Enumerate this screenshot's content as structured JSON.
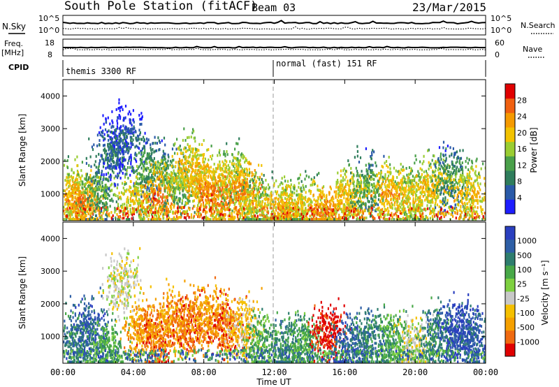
{
  "header": {
    "station": "South Pole Station (fitACF)",
    "beam": "Beam 03",
    "date": "23/Mar/2015"
  },
  "status_panels": {
    "nsky": {
      "label": "N.Sky",
      "ticks": [
        "10^5",
        "10^0"
      ],
      "right_label": "N.Search",
      "right_ticks": [
        "10^5",
        "10^0"
      ]
    },
    "freq": {
      "label_line1": "Freq.",
      "label_line2": "[MHz]",
      "ticks": [
        "18",
        "8"
      ],
      "right_label": "Nave",
      "right_ticks": [
        "60",
        "0"
      ]
    },
    "cpid": {
      "label": "CPID",
      "segments": [
        "themis 3300 RF",
        "normal (fast) 151 RF"
      ]
    }
  },
  "colors": {
    "power_scale": [
      "#1e1eff",
      "#2a5aa8",
      "#2f7d5c",
      "#4aa04a",
      "#9acd32",
      "#f2c200",
      "#f59a00",
      "#f06010",
      "#e00000"
    ],
    "velocity_scale": [
      "#2a3fbf",
      "#2e5fa6",
      "#2e7d6e",
      "#48a848",
      "#7ed040",
      "#c8c8c8",
      "#f5c000",
      "#f5a000",
      "#f06a10",
      "#e00000"
    ]
  },
  "chart_data": [
    {
      "type": "heatmap",
      "name": "power-panel",
      "ylabel": "Slant Range [km]",
      "y_ticks": [
        "4000",
        "3000",
        "2000",
        "1000"
      ],
      "ylim": [
        180,
        4500
      ],
      "xlim": [
        "00:00",
        "24:00"
      ],
      "colorbar": {
        "label": "Power [dB]",
        "ticks": [
          "28",
          "24",
          "20",
          "16",
          "12",
          "8",
          "4"
        ],
        "range": [
          0,
          32
        ]
      },
      "blobs": [
        {
          "t": 0.5,
          "r": 1000,
          "v": 22
        },
        {
          "t": 1.2,
          "r": 700,
          "v": 26
        },
        {
          "t": 2.0,
          "r": 1100,
          "v": 14
        },
        {
          "t": 2.8,
          "r": 2200,
          "v": 8
        },
        {
          "t": 3.5,
          "r": 2700,
          "v": 6
        },
        {
          "t": 4.2,
          "r": 900,
          "v": 20
        },
        {
          "t": 5.0,
          "r": 1800,
          "v": 12
        },
        {
          "t": 5.6,
          "r": 900,
          "v": 27
        },
        {
          "t": 6.5,
          "r": 1300,
          "v": 16
        },
        {
          "t": 7.3,
          "r": 1800,
          "v": 22
        },
        {
          "t": 8.0,
          "r": 1200,
          "v": 24
        },
        {
          "t": 8.8,
          "r": 900,
          "v": 28
        },
        {
          "t": 9.6,
          "r": 1500,
          "v": 20
        },
        {
          "t": 10.3,
          "r": 1100,
          "v": 26
        },
        {
          "t": 11.0,
          "r": 700,
          "v": 18
        },
        {
          "t": 12.5,
          "r": 500,
          "v": 24
        },
        {
          "t": 13.5,
          "r": 600,
          "v": 20
        },
        {
          "t": 14.8,
          "r": 450,
          "v": 26
        },
        {
          "t": 16.2,
          "r": 900,
          "v": 22
        },
        {
          "t": 17.3,
          "r": 1200,
          "v": 14
        },
        {
          "t": 18.6,
          "r": 1000,
          "v": 24
        },
        {
          "t": 19.8,
          "r": 900,
          "v": 20
        },
        {
          "t": 21.0,
          "r": 1200,
          "v": 22
        },
        {
          "t": 22.0,
          "r": 1500,
          "v": 12
        },
        {
          "t": 23.0,
          "r": 1000,
          "v": 22
        }
      ]
    },
    {
      "type": "heatmap",
      "name": "velocity-panel",
      "ylabel": "Slant Range [km]",
      "y_ticks": [
        "4000",
        "3000",
        "2000",
        "1000"
      ],
      "ylim": [
        180,
        4500
      ],
      "xlim": [
        "00:00",
        "24:00"
      ],
      "x_ticks": [
        "00:00",
        "04:00",
        "08:00",
        "12:00",
        "16:00",
        "20:00",
        "00:00"
      ],
      "xlabel": "Time UT",
      "colorbar": {
        "label": "Velocity [m s⁻¹]",
        "ticks": [
          "1000",
          "500",
          "100",
          "25",
          "-25",
          "-100",
          "-500",
          "-1000"
        ]
      },
      "blobs": [
        {
          "t": 0.6,
          "r": 900,
          "v": 2
        },
        {
          "t": 1.5,
          "r": 1200,
          "v": 1
        },
        {
          "t": 2.5,
          "r": 600,
          "v": 3
        },
        {
          "t": 3.3,
          "r": 2600,
          "v": 5
        },
        {
          "t": 4.5,
          "r": 1200,
          "v": 7
        },
        {
          "t": 5.4,
          "r": 900,
          "v": 8
        },
        {
          "t": 6.2,
          "r": 1500,
          "v": 7
        },
        {
          "t": 7.2,
          "r": 1300,
          "v": 8
        },
        {
          "t": 8.2,
          "r": 1600,
          "v": 7
        },
        {
          "t": 9.2,
          "r": 1300,
          "v": 8
        },
        {
          "t": 10.2,
          "r": 1200,
          "v": 6
        },
        {
          "t": 11.2,
          "r": 700,
          "v": 3
        },
        {
          "t": 12.6,
          "r": 600,
          "v": 2
        },
        {
          "t": 13.8,
          "r": 800,
          "v": 3
        },
        {
          "t": 15.0,
          "r": 1100,
          "v": 9
        },
        {
          "t": 16.3,
          "r": 700,
          "v": 1
        },
        {
          "t": 17.5,
          "r": 900,
          "v": 2
        },
        {
          "t": 18.8,
          "r": 800,
          "v": 3
        },
        {
          "t": 20.0,
          "r": 700,
          "v": 5
        },
        {
          "t": 21.2,
          "r": 1000,
          "v": 2
        },
        {
          "t": 22.5,
          "r": 1200,
          "v": 0
        },
        {
          "t": 23.2,
          "r": 900,
          "v": 1
        }
      ]
    }
  ]
}
